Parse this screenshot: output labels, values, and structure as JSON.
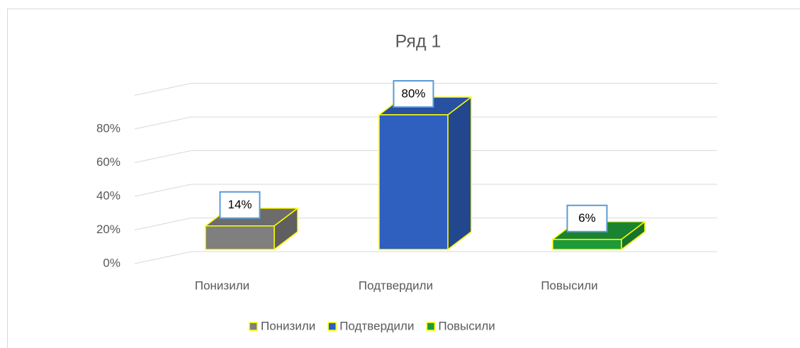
{
  "chart_data": {
    "type": "bar3d",
    "title": "Ряд 1",
    "categories": [
      "Понизили",
      "Подтвердили",
      "Повысили"
    ],
    "series": [
      {
        "name": "Ряд 1",
        "values": [
          14,
          80,
          6
        ],
        "value_labels": [
          "14%",
          "80%",
          "6%"
        ]
      }
    ],
    "colors": [
      "#7f7f7f",
      "#2f5fbf",
      "#1f9a3a"
    ],
    "ylim": [
      0,
      100
    ],
    "yticks": [
      {
        "value": 0,
        "label": "0%"
      },
      {
        "value": 20,
        "label": "20%"
      },
      {
        "value": 40,
        "label": "40%"
      },
      {
        "value": 60,
        "label": "60%"
      },
      {
        "value": 80,
        "label": "80%"
      }
    ],
    "grid": true,
    "legend": "bottom"
  }
}
